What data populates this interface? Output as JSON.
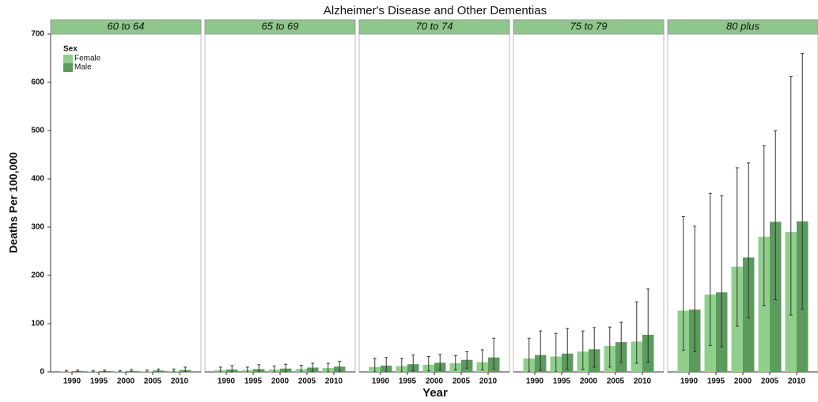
{
  "chart_data": {
    "type": "bar",
    "title": "Alzheimer's Disease and Other Dementias",
    "xlabel": "Year",
    "ylabel": "Deaths Per 100,000",
    "legend_title": "Sex",
    "categories": [
      "1990",
      "1995",
      "2000",
      "2005",
      "2010"
    ],
    "series": [
      {
        "name": "Female",
        "color": "#8fcf8b"
      },
      {
        "name": "Male",
        "color": "#5c9a5e"
      }
    ],
    "ylim": [
      0,
      700
    ],
    "yticks": [
      0,
      100,
      200,
      300,
      400,
      500,
      600,
      700
    ],
    "facets": [
      {
        "label": "60 to 64",
        "values": [
          [
            1,
            1,
            1,
            1,
            2
          ],
          [
            2,
            2,
            2,
            3,
            4
          ]
        ],
        "lower": [
          [
            0,
            0,
            0,
            0,
            0
          ],
          [
            0,
            0,
            0,
            0,
            0
          ]
        ],
        "upper": [
          [
            3,
            3,
            3,
            4,
            6
          ],
          [
            4,
            4,
            5,
            6,
            10
          ]
        ]
      },
      {
        "label": "65 to 69",
        "values": [
          [
            4,
            4,
            5,
            6,
            8
          ],
          [
            5,
            6,
            7,
            9,
            11
          ]
        ],
        "lower": [
          [
            0,
            0,
            0,
            0,
            0
          ],
          [
            0,
            0,
            0,
            0,
            0
          ]
        ],
        "upper": [
          [
            10,
            10,
            12,
            14,
            18
          ],
          [
            13,
            15,
            16,
            18,
            22
          ]
        ]
      },
      {
        "label": "70 to 74",
        "values": [
          [
            10,
            12,
            15,
            18,
            20
          ],
          [
            13,
            16,
            19,
            25,
            30
          ]
        ],
        "lower": [
          [
            0,
            0,
            2,
            4,
            4
          ],
          [
            0,
            2,
            4,
            8,
            6
          ]
        ],
        "upper": [
          [
            28,
            28,
            32,
            34,
            46
          ],
          [
            30,
            35,
            36,
            42,
            70
          ]
        ]
      },
      {
        "label": "75 to 79",
        "values": [
          [
            28,
            32,
            42,
            54,
            63
          ],
          [
            35,
            38,
            47,
            62,
            77
          ]
        ],
        "lower": [
          [
            0,
            0,
            5,
            10,
            18
          ],
          [
            3,
            5,
            10,
            20,
            20
          ]
        ],
        "upper": [
          [
            70,
            80,
            85,
            93,
            145
          ],
          [
            85,
            90,
            92,
            103,
            172
          ]
        ]
      },
      {
        "label": "80 plus",
        "values": [
          [
            127,
            160,
            218,
            280,
            290
          ],
          [
            129,
            165,
            237,
            311,
            312
          ]
        ],
        "lower": [
          [
            45,
            55,
            95,
            137,
            118
          ],
          [
            42,
            52,
            112,
            150,
            130
          ]
        ],
        "upper": [
          [
            322,
            370,
            423,
            469,
            612
          ],
          [
            302,
            365,
            433,
            500,
            660
          ]
        ]
      }
    ]
  }
}
